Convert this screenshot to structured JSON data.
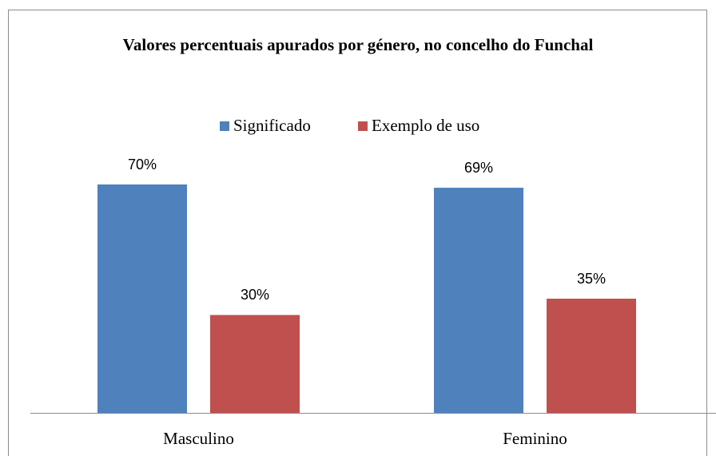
{
  "chart_data": {
    "type": "bar",
    "title": "Valores percentuais apurados por género, no concelho do Funchal",
    "categories": [
      "Masculino",
      "Feminino"
    ],
    "series": [
      {
        "name": "Significado",
        "color": "#4f81bd",
        "values": [
          70,
          69
        ],
        "value_labels": [
          "70%",
          "69%"
        ]
      },
      {
        "name": "Exemplo de uso",
        "color": "#c0504d",
        "values": [
          30,
          35
        ],
        "value_labels": [
          "30%",
          "35%"
        ]
      }
    ],
    "legend": "top"
  }
}
